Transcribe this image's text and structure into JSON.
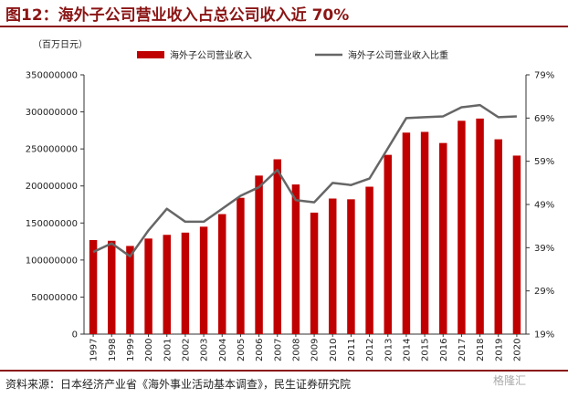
{
  "title": "图12：海外子公司营业收入占总公司收入近 70%",
  "unit_label": "（百万日元）",
  "source": "资料来源：日本经济产业省《海外事业活动基本调查》，民生证券研究院",
  "watermark": "格隆汇",
  "colors": {
    "bar": "#c00000",
    "line": "#666666",
    "accent": "#8b1515"
  },
  "chart_data": {
    "type": "bar",
    "categories": [
      "1997",
      "1998",
      "1999",
      "2000",
      "2001",
      "2002",
      "2003",
      "2004",
      "2005",
      "2006",
      "2007",
      "2008",
      "2009",
      "2010",
      "2011",
      "2012",
      "2013",
      "2014",
      "2015",
      "2016",
      "2017",
      "2018",
      "2019",
      "2020"
    ],
    "series": [
      {
        "name": "海外子公司营业收入",
        "type": "bar",
        "axis": "left",
        "values": [
          127000000,
          126000000,
          119000000,
          129000000,
          134000000,
          137000000,
          145000000,
          162000000,
          184000000,
          214000000,
          236000000,
          202000000,
          164000000,
          183000000,
          182000000,
          199000000,
          242000000,
          272000000,
          273000000,
          258000000,
          288000000,
          291000000,
          263000000,
          241000000
        ]
      },
      {
        "name": "海外子公司营业收入比重",
        "type": "line",
        "axis": "right",
        "values": [
          38,
          40,
          37,
          43,
          48,
          45,
          45,
          48,
          51,
          53,
          57,
          50,
          49.5,
          54,
          53.5,
          55,
          62,
          69,
          69.2,
          69.4,
          71.5,
          72,
          69.2,
          69.4
        ]
      }
    ],
    "left_axis": {
      "min": 0,
      "max": 350000000,
      "ticks": [
        "0",
        "50000000",
        "100000000",
        "150000000",
        "200000000",
        "250000000",
        "300000000",
        "350000000"
      ]
    },
    "right_axis": {
      "min": 19,
      "max": 79,
      "ticks": [
        "19%",
        "29%",
        "39%",
        "49%",
        "59%",
        "69%",
        "79%"
      ]
    },
    "legend_position": "top"
  }
}
